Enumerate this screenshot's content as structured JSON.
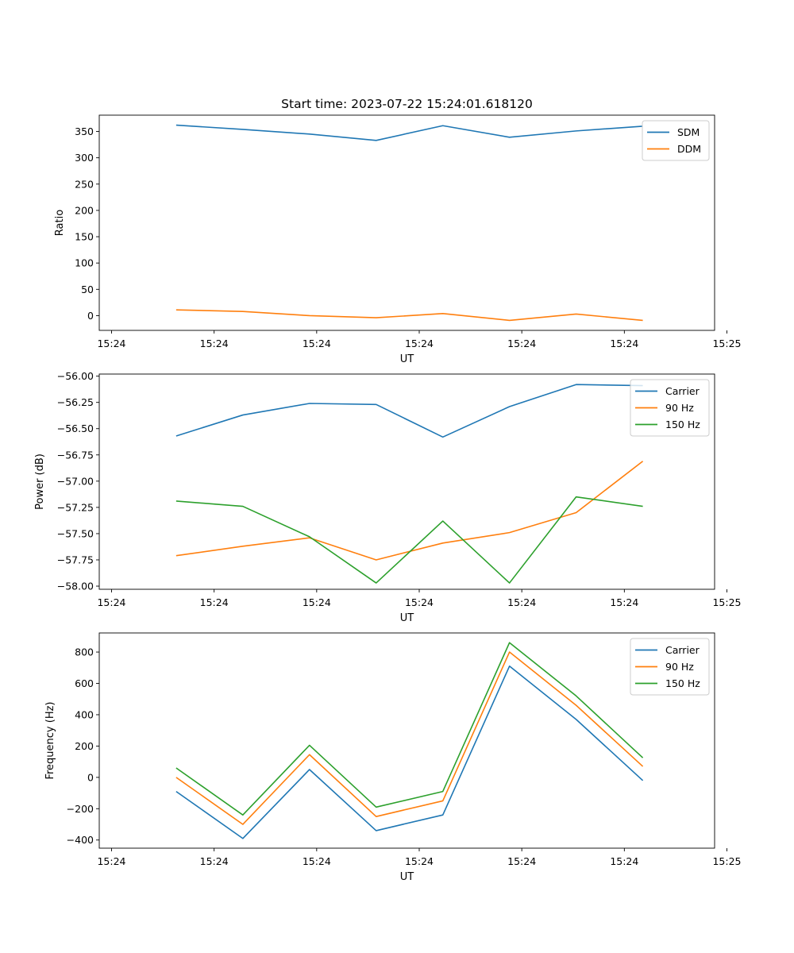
{
  "figure_title": "Start time: 2023-07-22 15:24:01.618120",
  "chart_data": [
    {
      "type": "line",
      "title": "Start time: 2023-07-22 15:24:01.618120",
      "xlabel": "UT",
      "ylabel": "Ratio",
      "x": [
        0.75,
        1.4,
        2.05,
        2.7,
        3.35,
        4.0,
        4.65,
        5.3
      ],
      "xlim": [
        0,
        6
      ],
      "xticks": [
        0.12,
        1.12,
        2.12,
        3.12,
        4.12,
        5.12,
        6.12
      ],
      "xtick_labels": [
        "15:24",
        "15:24",
        "15:24",
        "15:24",
        "15:24",
        "15:24",
        "15:25"
      ],
      "ylim": [
        -28,
        381
      ],
      "yticks": [
        0,
        50,
        100,
        150,
        200,
        250,
        300,
        350
      ],
      "ytick_labels": [
        "0",
        "50",
        "100",
        "150",
        "200",
        "250",
        "300",
        "350"
      ],
      "legend": "top-right",
      "series": [
        {
          "name": "SDM",
          "color": "#1f77b4",
          "values": [
            362,
            354,
            345,
            333,
            361,
            339,
            351,
            360
          ]
        },
        {
          "name": "DDM",
          "color": "#ff7f0e",
          "values": [
            11,
            8,
            0,
            -4,
            4,
            -9,
            3,
            -9
          ]
        }
      ]
    },
    {
      "type": "line",
      "title": "",
      "xlabel": "UT",
      "ylabel": "Power (dB)",
      "x": [
        0.75,
        1.4,
        2.05,
        2.7,
        3.35,
        4.0,
        4.65,
        5.3
      ],
      "xlim": [
        0,
        6
      ],
      "xticks": [
        0.12,
        1.12,
        2.12,
        3.12,
        4.12,
        5.12,
        6.12
      ],
      "xtick_labels": [
        "15:24",
        "15:24",
        "15:24",
        "15:24",
        "15:24",
        "15:24",
        "15:25"
      ],
      "ylim": [
        -58.03,
        -55.98
      ],
      "yticks": [
        -58.0,
        -57.75,
        -57.5,
        -57.25,
        -57.0,
        -56.75,
        -56.5,
        -56.25,
        -56.0
      ],
      "ytick_labels": [
        "−58.00",
        "−57.75",
        "−57.50",
        "−57.25",
        "−57.00",
        "−56.75",
        "−56.50",
        "−56.25",
        "−56.00"
      ],
      "legend": "top-right",
      "series": [
        {
          "name": "Carrier",
          "color": "#1f77b4",
          "values": [
            -56.57,
            -56.37,
            -56.26,
            -56.27,
            -56.58,
            -56.29,
            -56.08,
            -56.09
          ]
        },
        {
          "name": "90 Hz",
          "color": "#ff7f0e",
          "values": [
            -57.71,
            -57.62,
            -57.54,
            -57.75,
            -57.59,
            -57.49,
            -57.3,
            -56.81
          ]
        },
        {
          "name": "150 Hz",
          "color": "#2ca02c",
          "values": [
            -57.19,
            -57.24,
            -57.53,
            -57.97,
            -57.38,
            -57.97,
            -57.15,
            -57.24
          ]
        }
      ]
    },
    {
      "type": "line",
      "title": "",
      "xlabel": "UT",
      "ylabel": "Frequency (Hz)",
      "x": [
        0.75,
        1.4,
        2.05,
        2.7,
        3.35,
        4.0,
        4.65,
        5.3
      ],
      "xlim": [
        0,
        6
      ],
      "xticks": [
        0.12,
        1.12,
        2.12,
        3.12,
        4.12,
        5.12,
        6.12
      ],
      "xtick_labels": [
        "15:24",
        "15:24",
        "15:24",
        "15:24",
        "15:24",
        "15:24",
        "15:25"
      ],
      "ylim": [
        -452,
        922
      ],
      "yticks": [
        -400,
        -200,
        0,
        200,
        400,
        600,
        800
      ],
      "ytick_labels": [
        "−400",
        "−200",
        "0",
        "200",
        "400",
        "600",
        "800"
      ],
      "legend": "top-right",
      "series": [
        {
          "name": "Carrier",
          "color": "#1f77b4",
          "values": [
            -90,
            -390,
            50,
            -340,
            -240,
            710,
            370,
            -20
          ]
        },
        {
          "name": "90 Hz",
          "color": "#ff7f0e",
          "values": [
            0,
            -300,
            145,
            -250,
            -150,
            800,
            460,
            70
          ]
        },
        {
          "name": "150 Hz",
          "color": "#2ca02c",
          "values": [
            60,
            -240,
            205,
            -190,
            -90,
            860,
            520,
            125
          ]
        }
      ]
    }
  ]
}
